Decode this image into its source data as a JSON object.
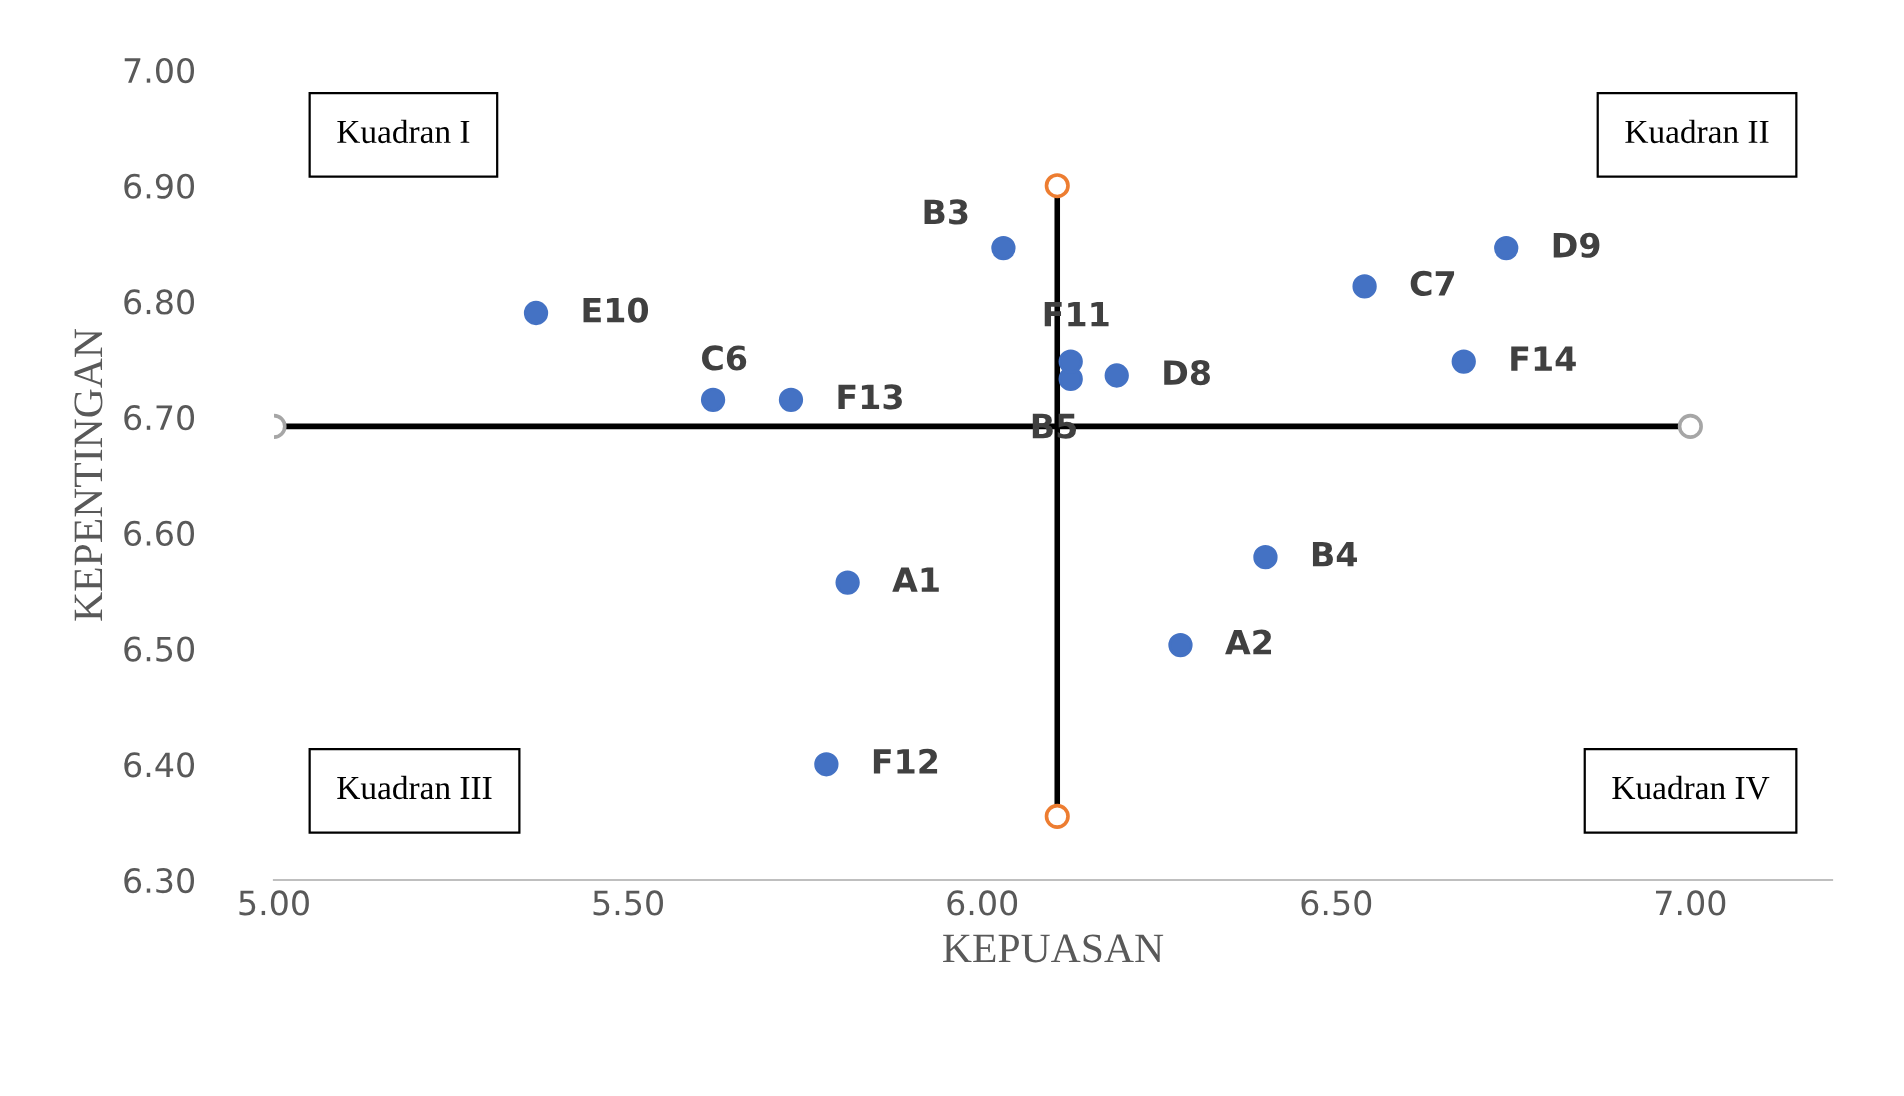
{
  "chart_data": {
    "type": "scatter",
    "xlabel": "KEPUASAN",
    "ylabel": "KEPENTINGAN",
    "xlim": [
      5.0,
      7.2
    ],
    "ylim": [
      6.3,
      7.0
    ],
    "xticks": [
      {
        "value": 5.0,
        "label": "5.00"
      },
      {
        "value": 5.5,
        "label": "5.50"
      },
      {
        "value": 6.0,
        "label": "6.00"
      },
      {
        "value": 6.5,
        "label": "6.50"
      },
      {
        "value": 7.0,
        "label": "7.00"
      }
    ],
    "yticks": [
      {
        "value": 6.3,
        "label": "6.30"
      },
      {
        "value": 6.4,
        "label": "6.40"
      },
      {
        "value": 6.5,
        "label": "6.50"
      },
      {
        "value": 6.6,
        "label": "6.60"
      },
      {
        "value": 6.7,
        "label": "6.70"
      },
      {
        "value": 6.8,
        "label": "6.80"
      },
      {
        "value": 6.9,
        "label": "6.90"
      },
      {
        "value": 7.0,
        "label": "7.00"
      }
    ],
    "grid": false,
    "annotations": [
      "Kuadran I",
      "Kuadran II",
      "Kuadran III",
      "Kuadran IV"
    ],
    "series": [
      {
        "type": "line",
        "color": "#000000",
        "marker": "circle",
        "colors": [
          "#a6a6a6",
          "#a6a6a6"
        ],
        "x": [
          5.0,
          7.0
        ],
        "values": [
          6.692,
          6.692
        ]
      },
      {
        "type": "line",
        "color": "#000000",
        "marker": "circle",
        "colors": [
          "#ed7d31",
          "#ed7d31"
        ],
        "x": [
          6.106,
          6.106
        ],
        "values": [
          6.9,
          6.355
        ]
      },
      {
        "marker": "circle",
        "color": "#4472c4",
        "x": [
          5.81,
          6.28,
          6.03,
          6.4,
          6.125,
          5.62,
          6.54,
          6.19,
          6.74,
          5.37,
          6.125,
          5.78,
          5.73,
          6.68
        ],
        "values": [
          6.557,
          6.503,
          6.846,
          6.579,
          6.733,
          6.715,
          6.813,
          6.736,
          6.846,
          6.79,
          6.748,
          6.4,
          6.715,
          6.748
        ],
        "value_labels": [
          "A1",
          "A2",
          "B3",
          "B4",
          "B5",
          "C6",
          "C7",
          "D8",
          "D9",
          "E10",
          "F11",
          "F12",
          "F13",
          "F14"
        ]
      }
    ]
  }
}
